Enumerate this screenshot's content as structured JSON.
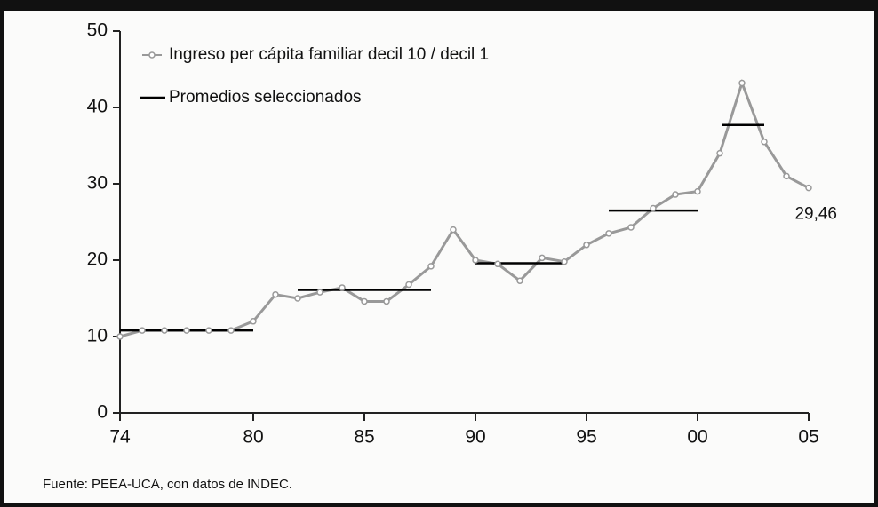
{
  "chart_data": {
    "type": "line",
    "xlim": [
      74,
      105
    ],
    "xticks": [
      74,
      80,
      85,
      90,
      95,
      {
        "value": 100,
        "label": "00"
      },
      {
        "value": 105,
        "label": "05"
      }
    ],
    "ylim": [
      0,
      50
    ],
    "yticks": [
      0,
      10,
      20,
      30,
      40,
      50
    ],
    "series": [
      {
        "name": "Ingreso per cápita familiar decil 10 / decil 1",
        "color": "#999999",
        "x": [
          74,
          75,
          76,
          77,
          78,
          79,
          80,
          81,
          82,
          83,
          84,
          85,
          86,
          87,
          88,
          89,
          90,
          91,
          92,
          93,
          94,
          95,
          96,
          97,
          98,
          99,
          100,
          101,
          102,
          103,
          104,
          105
        ],
        "values": [
          10,
          10.8,
          10.8,
          10.8,
          10.8,
          10.8,
          12,
          15.5,
          15,
          15.8,
          16.4,
          14.6,
          14.6,
          16.8,
          19.2,
          24,
          20,
          19.5,
          17.3,
          20.3,
          19.8,
          22,
          23.5,
          24.3,
          26.8,
          28.6,
          29,
          34,
          43.2,
          35.5,
          31,
          29.46
        ],
        "value_labels": [
          null,
          null,
          null,
          null,
          null,
          null,
          null,
          null,
          null,
          null,
          null,
          null,
          null,
          null,
          null,
          null,
          null,
          null,
          null,
          null,
          null,
          null,
          null,
          null,
          null,
          null,
          null,
          null,
          null,
          null,
          null,
          "29,46"
        ]
      },
      {
        "name": "Promedios seleccionados",
        "color": "#000000",
        "x": [
          74,
          80,
          81,
          82,
          88,
          89,
          90,
          94,
          95,
          96,
          100,
          101,
          101.1,
          103
        ],
        "values": [
          10.8,
          10.8,
          null,
          16.1,
          16.1,
          null,
          19.6,
          19.6,
          null,
          26.5,
          26.5,
          null,
          37.7,
          37.7
        ]
      }
    ],
    "source": "Fuente: PEEA-UCA, con datos de INDEC."
  }
}
